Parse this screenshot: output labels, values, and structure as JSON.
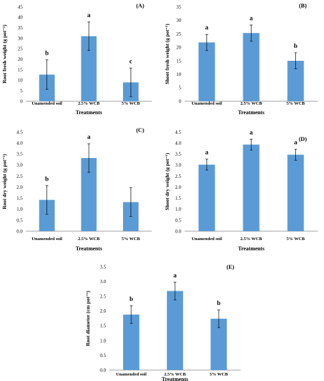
{
  "chart_data": [
    {
      "panel": "(A)",
      "type": "bar",
      "categories": [
        "Unamended soil",
        "2.5% WCB",
        "5% WCB"
      ],
      "values": [
        12.7,
        31.0,
        9.0
      ],
      "errors": [
        7.0,
        6.8,
        6.8
      ],
      "letters": [
        "b",
        "a",
        "c"
      ],
      "ylabel": "Root fresh weight (g pot⁻¹)",
      "xlabel": "Treatments",
      "ylim": [
        0,
        45
      ],
      "yticks": [
        0,
        5,
        10,
        15,
        20,
        25,
        30,
        35,
        40,
        45
      ]
    },
    {
      "panel": "(B)",
      "type": "bar",
      "categories": [
        "Unamended soil",
        "2.5% WCB",
        "5% WCB"
      ],
      "values": [
        21.8,
        25.3,
        15.0
      ],
      "errors": [
        3.0,
        3.0,
        3.0
      ],
      "letters": [
        "a",
        "a",
        "b"
      ],
      "ylabel": "Shoot fresh weight (g pot⁻¹)",
      "xlabel": "Treatments",
      "ylim": [
        0,
        35
      ],
      "yticks": [
        0,
        5,
        10,
        15,
        20,
        25,
        30,
        35
      ]
    },
    {
      "panel": "(C)",
      "type": "bar",
      "categories": [
        "Unamended soil",
        "2.5% WCB",
        "5% WCB"
      ],
      "values": [
        1.42,
        3.32,
        1.32
      ],
      "errors": [
        0.65,
        0.65,
        0.65
      ],
      "letters": [
        "b",
        "a",
        ""
      ],
      "ylabel": "Root dry weight (g pot⁻¹)",
      "xlabel": "Treatments",
      "ylim": [
        0,
        4.5
      ],
      "yticks": [
        "0.0",
        "0.5",
        "1.0",
        "1.5",
        "2.0",
        "2.5",
        "3.0",
        "3.5",
        "4.0",
        "4.5"
      ]
    },
    {
      "panel": "(D)",
      "type": "bar",
      "categories": [
        "Unamended soil",
        "2.5% WCB",
        "5% WCB"
      ],
      "values": [
        3.02,
        3.93,
        3.47
      ],
      "errors": [
        0.25,
        0.25,
        0.25
      ],
      "letters": [
        "a",
        "a",
        "a"
      ],
      "ylabel": "Shoot dry weight (g pot⁻¹)",
      "xlabel": "Treatments",
      "ylim": [
        0,
        4.5
      ],
      "yticks": [
        "0.0",
        "0.5",
        "1.0",
        "1.5",
        "2.0",
        "2.5",
        "3.0",
        "3.5",
        "4.0",
        "4.5"
      ]
    },
    {
      "panel": "(E)",
      "type": "bar",
      "categories": [
        "Unamended soil",
        "2.5% WCB",
        "5% WCB"
      ],
      "values": [
        1.88,
        2.68,
        1.74
      ],
      "errors": [
        0.3,
        0.3,
        0.3
      ],
      "letters": [
        "b",
        "a",
        "b"
      ],
      "ylabel": "Root diameter (cm pot⁻¹)",
      "xlabel": "Treatments",
      "ylim": [
        0,
        3.5
      ],
      "yticks": [
        "0.0",
        "0.5",
        "1.0",
        "1.5",
        "2.0",
        "2.5",
        "3.0",
        "3.5"
      ]
    }
  ]
}
